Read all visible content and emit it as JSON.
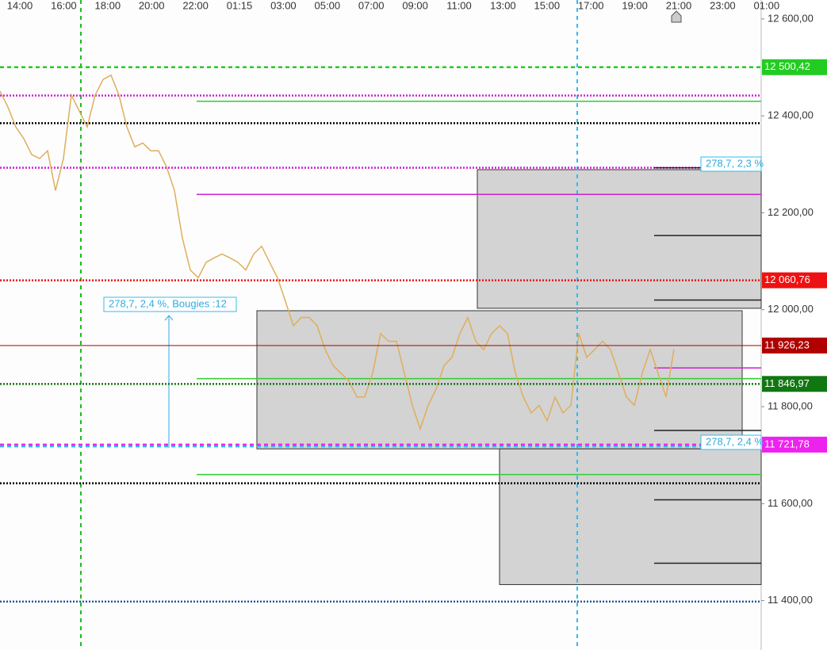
{
  "chart_data": {
    "type": "line",
    "color": "#dfae5c",
    "values": [
      12451,
      12418,
      12377,
      12353,
      12320,
      12312,
      12328,
      12246,
      12312,
      12443,
      12410,
      12377,
      12443,
      12475,
      12484,
      12443,
      12377,
      12336,
      12344,
      12328,
      12328,
      12295,
      12246,
      12148,
      12082,
      12066,
      12098,
      12107,
      12115,
      12107,
      12098,
      12082,
      12115,
      12131,
      12098,
      12066,
      12017,
      11967,
      11984,
      11984,
      11967,
      11918,
      11885,
      11869,
      11853,
      11820,
      11820,
      11869,
      11951,
      11935,
      11935,
      11869,
      11803,
      11754,
      11803,
      11836,
      11885,
      11902,
      11951,
      11984,
      11935,
      11918,
      11951,
      11967,
      11951,
      11869,
      11820,
      11787,
      11803,
      11771,
      11820,
      11787,
      11803,
      11951,
      11902,
      11918,
      11935,
      11918,
      11869,
      11820,
      11803,
      11869,
      11918,
      11869,
      11820,
      11918
    ],
    "xticks": [
      "14:00",
      "16:00",
      "18:00",
      "20:00",
      "22:00",
      "01:15",
      "03:00",
      "05:00",
      "07:00",
      "09:00",
      "11:00",
      "13:00",
      "15:00",
      "17:00",
      "19:00",
      "21:00",
      "23:00",
      "01:00"
    ],
    "ylim": [
      11298,
      12639
    ],
    "yticks": [
      {
        "value": 12600,
        "label": "12 600,00"
      },
      {
        "value": 12400,
        "label": "12 400,00"
      },
      {
        "value": 12200,
        "label": "12 200,00"
      },
      {
        "value": 12000,
        "label": "12 000,00"
      },
      {
        "value": 11800,
        "label": "11 800,00"
      },
      {
        "value": 11600,
        "label": "11 600,00"
      },
      {
        "value": 11400,
        "label": "11 400,00"
      }
    ],
    "price_tags": [
      {
        "value": 12500.42,
        "label": "12 500,42",
        "color": "#22cc22",
        "style": "dashed"
      },
      {
        "value": 12060.76,
        "label": "12 060,76",
        "color": "#ee1111",
        "style": "dotted"
      },
      {
        "value": 11926.23,
        "label": "11 926,23",
        "color": "#b00000",
        "style": "solid"
      },
      {
        "value": 11846.97,
        "label": "11 846,97",
        "color": "#117711",
        "style": "dotted"
      },
      {
        "value": 11721.78,
        "label": "11 721,78",
        "color": "#ee22ee",
        "style": "dashed"
      }
    ],
    "levels": [
      {
        "value": 12442,
        "color": "#d020d0",
        "style": "dotted",
        "partial": false
      },
      {
        "value": 12385,
        "color": "#000000",
        "style": "dotted",
        "partial": false
      },
      {
        "value": 12293,
        "color": "#d020d0",
        "style": "dotted",
        "partial": false
      },
      {
        "value": 11718,
        "color": "#33bbee",
        "style": "dashed",
        "partial": false
      },
      {
        "value": 11642,
        "color": "#000000",
        "style": "dotted",
        "partial": false
      },
      {
        "value": 11398,
        "color": "#225599",
        "style": "dotted",
        "partial": false
      },
      {
        "value": 12430,
        "color": "#33cc33",
        "style": "solid",
        "partial": true
      },
      {
        "value": 12238,
        "color": "#d020d0",
        "style": "solid",
        "partial": true
      },
      {
        "value": 11858,
        "color": "#33cc33",
        "style": "solid",
        "partial": true
      },
      {
        "value": 11660,
        "color": "#33cc33",
        "style": "solid",
        "partial": true
      }
    ],
    "short_levels": [
      12293,
      12153,
      12020,
      11751,
      11608,
      11477
    ],
    "short_level_magenta": 11880,
    "zones": [
      {
        "top": 11998,
        "bottom": 11713
      },
      {
        "top": 12289,
        "bottom": 12003
      },
      {
        "top": 11713,
        "bottom": 11433
      }
    ],
    "annotations": [
      "278,7, 2,4 %, Bougies :12",
      "278,7, 2,3 %",
      "278,7, 2,4 %"
    ]
  }
}
